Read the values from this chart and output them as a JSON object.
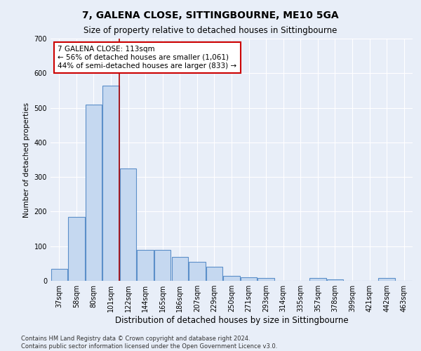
{
  "title": "7, GALENA CLOSE, SITTINGBOURNE, ME10 5GA",
  "subtitle": "Size of property relative to detached houses in Sittingbourne",
  "xlabel": "Distribution of detached houses by size in Sittingbourne",
  "ylabel": "Number of detached properties",
  "categories": [
    "37sqm",
    "58sqm",
    "80sqm",
    "101sqm",
    "122sqm",
    "144sqm",
    "165sqm",
    "186sqm",
    "207sqm",
    "229sqm",
    "250sqm",
    "271sqm",
    "293sqm",
    "314sqm",
    "335sqm",
    "357sqm",
    "378sqm",
    "399sqm",
    "421sqm",
    "442sqm",
    "463sqm"
  ],
  "values": [
    35,
    185,
    510,
    565,
    325,
    90,
    90,
    70,
    55,
    40,
    15,
    10,
    8,
    0,
    0,
    8,
    5,
    0,
    0,
    8,
    0
  ],
  "bar_color": "#c5d8f0",
  "bar_edge_color": "#5b8fc9",
  "vline_color": "#aa0000",
  "vline_x_index": 3.5,
  "annotation_text": "7 GALENA CLOSE: 113sqm\n← 56% of detached houses are smaller (1,061)\n44% of semi-detached houses are larger (833) →",
  "annotation_box_facecolor": "#ffffff",
  "annotation_box_edgecolor": "#cc0000",
  "ylim": [
    0,
    700
  ],
  "yticks": [
    0,
    100,
    200,
    300,
    400,
    500,
    600,
    700
  ],
  "background_color": "#e8eef8",
  "plot_background": "#e8eef8",
  "footer": "Contains HM Land Registry data © Crown copyright and database right 2024.\nContains public sector information licensed under the Open Government Licence v3.0.",
  "grid_color": "#ffffff",
  "title_fontsize": 10,
  "subtitle_fontsize": 8.5,
  "xlabel_fontsize": 8.5,
  "ylabel_fontsize": 7.5,
  "tick_fontsize": 7,
  "annotation_fontsize": 7.5,
  "footer_fontsize": 6
}
